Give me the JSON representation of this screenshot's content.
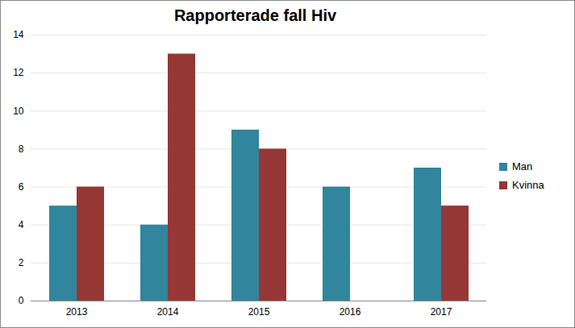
{
  "chart_data": {
    "type": "bar",
    "title": "Rapporterade fall Hiv",
    "categories": [
      "2013",
      "2014",
      "2015",
      "2016",
      "2017"
    ],
    "series": [
      {
        "name": "Man",
        "color": "#31859c",
        "values": [
          5,
          4,
          9,
          6,
          7
        ]
      },
      {
        "name": "Kvinna",
        "color": "#953735",
        "values": [
          6,
          13,
          8,
          0,
          5
        ]
      }
    ],
    "ylim": [
      0,
      14
    ],
    "yticks": [
      0,
      2,
      4,
      6,
      8,
      10,
      12,
      14
    ],
    "grid": true,
    "legend": "right"
  }
}
